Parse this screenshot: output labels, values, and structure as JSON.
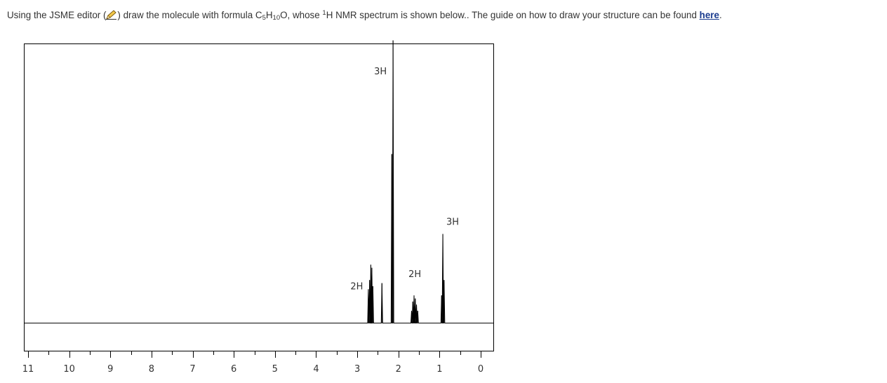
{
  "instruction": {
    "part1": "Using the JSME editor (",
    "editor_icon": "pencil-icon",
    "part2": ") draw the molecule with formula C",
    "sub1": "5",
    "part3": "H",
    "sub2": "10",
    "part4": "O, whose ",
    "sup1": "1",
    "part5": "H NMR spectrum is shown below.. The guide on how to draw your structure can be found ",
    "link_text": "here",
    "part6": "."
  },
  "chart_data": {
    "type": "line",
    "title": "",
    "xlabel": "",
    "ylabel": "",
    "xlim": [
      11,
      0
    ],
    "x_reversed": true,
    "ylim": [
      0,
      1
    ],
    "x_tick_labels": [
      "11",
      "10",
      "9",
      "8",
      "7",
      "6",
      "5",
      "4",
      "3",
      "2",
      "1",
      "0"
    ],
    "x_ticks": [
      11,
      10,
      9,
      8,
      7,
      6,
      5,
      4,
      3,
      2,
      1,
      0
    ],
    "minor_ticks_every": 0.5,
    "grid": false,
    "baseline_level": 0.09,
    "series": [
      {
        "peaks": [
          {
            "ppm": 2.73,
            "height": 0.11
          },
          {
            "ppm": 2.7,
            "height": 0.14
          },
          {
            "ppm": 2.67,
            "height": 0.19
          },
          {
            "ppm": 2.645,
            "height": 0.18
          },
          {
            "ppm": 2.62,
            "height": 0.12
          },
          {
            "ppm": 2.4,
            "height": 0.13
          },
          {
            "ppm": 2.16,
            "height": 0.55
          },
          {
            "ppm": 2.13,
            "height": 0.92
          },
          {
            "ppm": 1.68,
            "height": 0.04
          },
          {
            "ppm": 1.65,
            "height": 0.07
          },
          {
            "ppm": 1.62,
            "height": 0.09
          },
          {
            "ppm": 1.59,
            "height": 0.08
          },
          {
            "ppm": 1.56,
            "height": 0.06
          },
          {
            "ppm": 1.53,
            "height": 0.04
          },
          {
            "ppm": 0.95,
            "height": 0.09
          },
          {
            "ppm": 0.92,
            "height": 0.29
          },
          {
            "ppm": 0.89,
            "height": 0.14
          }
        ]
      }
    ],
    "integrations": [
      {
        "label": "3H",
        "ppm": 2.13
      },
      {
        "label": "2H",
        "ppm": 2.67
      },
      {
        "label": "2H",
        "ppm": 1.6
      },
      {
        "label": "3H",
        "ppm": 0.92
      }
    ]
  },
  "colors": {
    "text": "#333333",
    "link": "#1a3b8f",
    "axis": "#000000",
    "pencil": "#f3c84b"
  }
}
